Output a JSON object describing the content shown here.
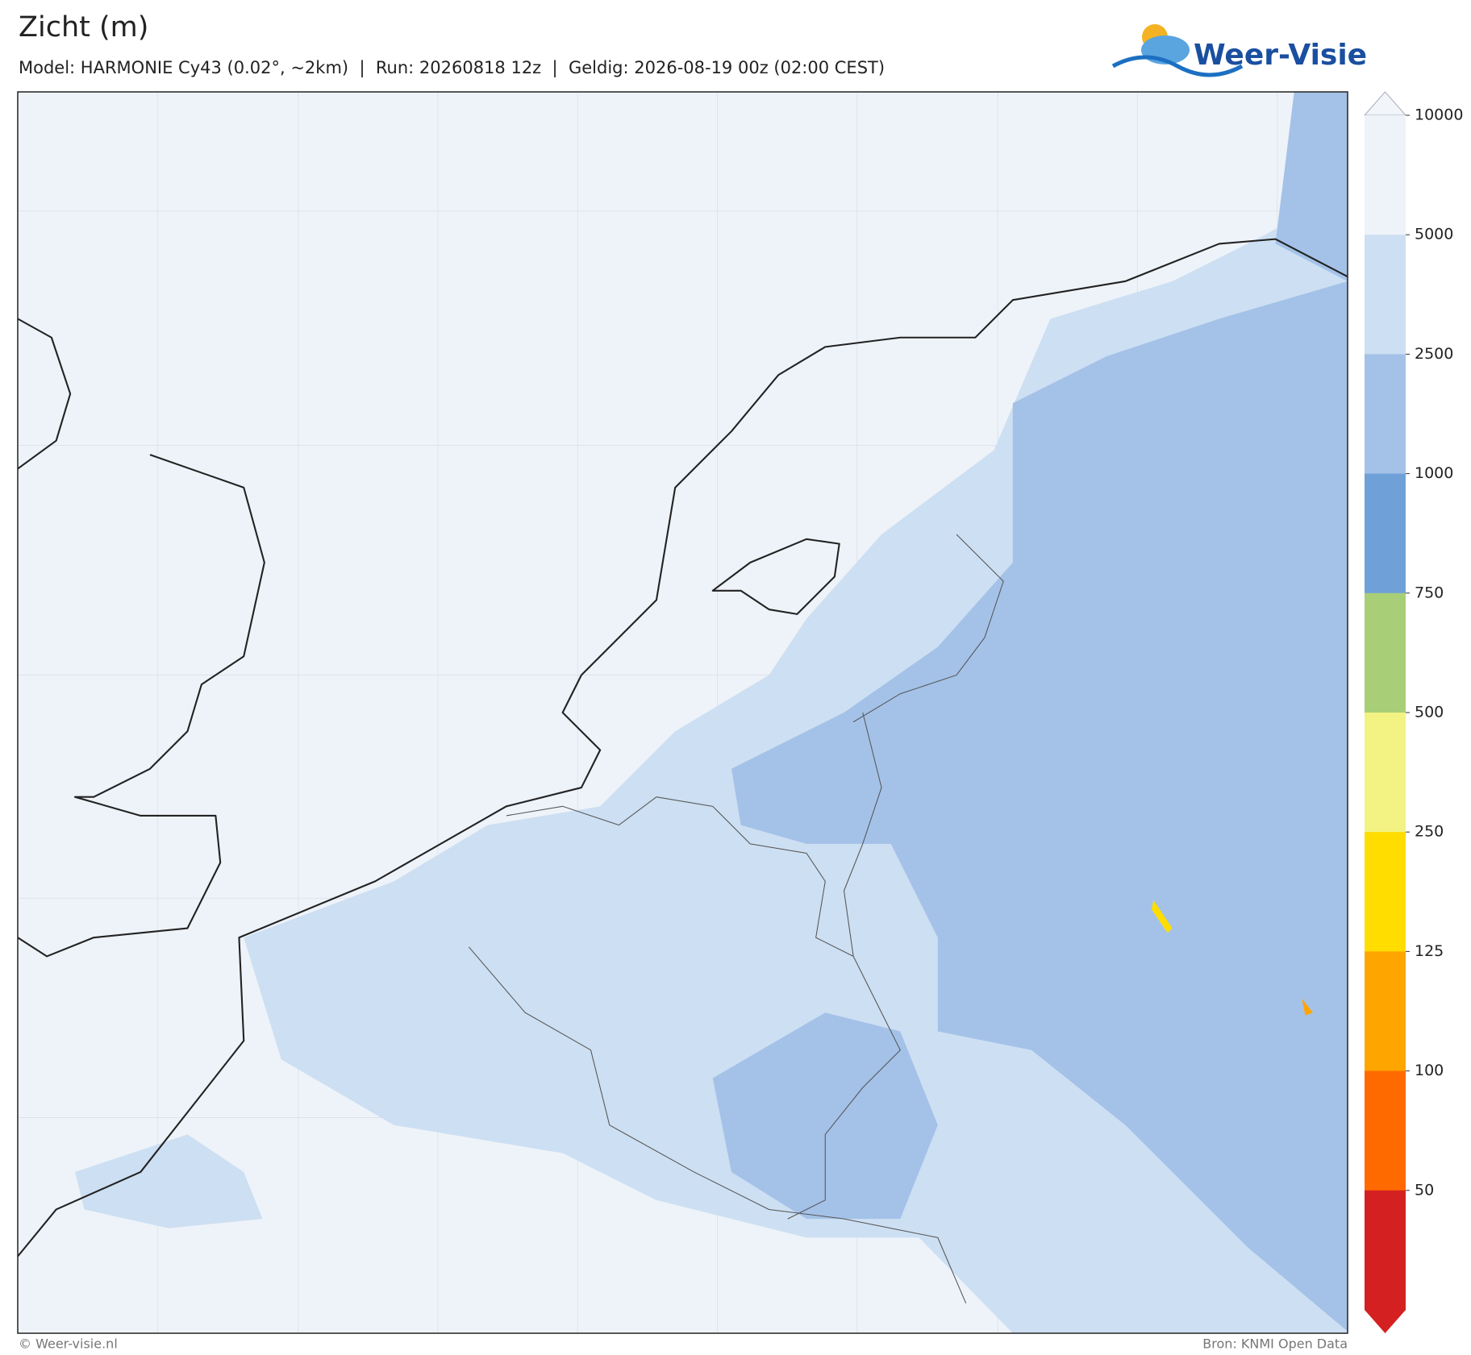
{
  "header": {
    "title": "Zicht (m)",
    "subtitle": "Model: HARMONIE Cy43 (0.02°, ~2km)  |  Run: 20260818 12z  |  Geldig: 2026-08-19 00z (02:00 CEST)"
  },
  "logo": {
    "text": "Weer-Visie"
  },
  "colorbar": {
    "ticks": [
      10000,
      5000,
      2500,
      1000,
      750,
      500,
      250,
      125,
      100,
      50
    ],
    "colors": [
      "#f2f5fa",
      "#eef3f9",
      "#cddff2",
      "#a4c2e8",
      "#6fa1d8",
      "#a8cf78",
      "#f3f383",
      "#ffdd00",
      "#ffa500",
      "#ff6a00",
      "#d42020"
    ]
  },
  "footer": {
    "left": "© Weer-visie.nl",
    "right": "Bron: KNMI Open Data"
  }
}
